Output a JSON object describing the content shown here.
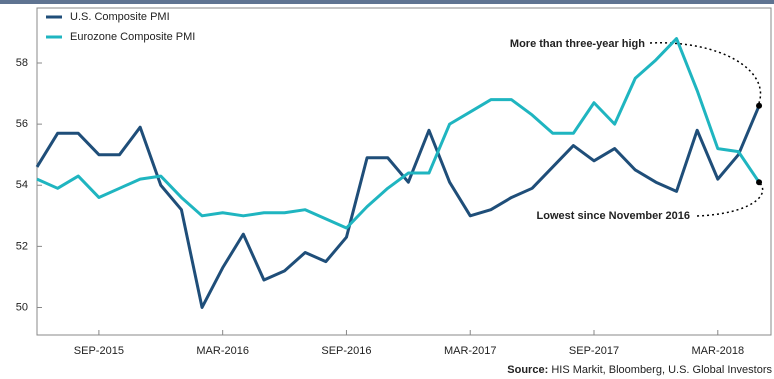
{
  "chart_data": {
    "type": "line",
    "categories": [
      null,
      null,
      null,
      "SEP-2015",
      null,
      null,
      null,
      null,
      null,
      "MAR-2016",
      null,
      null,
      null,
      null,
      null,
      "SEP-2016",
      null,
      null,
      null,
      null,
      null,
      "MAR-2017",
      null,
      null,
      null,
      null,
      null,
      "SEP-2017",
      null,
      null,
      null,
      null,
      null,
      "MAR-2018",
      null,
      null
    ],
    "series": [
      {
        "name": "U.S. Composite PMI",
        "color": "#1f4e79",
        "values": [
          54.6,
          55.7,
          55.7,
          55.0,
          55.0,
          55.9,
          54.0,
          53.2,
          50.0,
          51.3,
          52.4,
          50.9,
          51.2,
          51.8,
          51.5,
          52.3,
          54.9,
          54.9,
          54.1,
          55.8,
          54.1,
          53.0,
          53.2,
          53.6,
          53.9,
          54.6,
          55.3,
          54.8,
          55.2,
          54.5,
          54.1,
          53.8,
          55.8,
          54.2,
          55.0,
          56.6
        ]
      },
      {
        "name": "Eurozone Composite PMI",
        "color": "#1fb5c0",
        "values": [
          54.2,
          53.9,
          54.3,
          53.6,
          53.9,
          54.2,
          54.3,
          53.6,
          53.0,
          53.1,
          53.0,
          53.1,
          53.1,
          53.2,
          52.9,
          52.6,
          53.3,
          53.9,
          54.4,
          54.4,
          56.0,
          56.4,
          56.8,
          56.8,
          56.3,
          55.7,
          55.7,
          56.7,
          56.0,
          57.5,
          58.1,
          58.8,
          57.1,
          55.2,
          55.1,
          54.1
        ]
      }
    ],
    "ylim": [
      49.1,
      59.8
    ],
    "yticks": [
      50,
      52,
      54,
      56,
      58
    ],
    "grid": false,
    "legend": "top-left",
    "annotations": [
      "More than three-year high",
      "Lowest since November 2016"
    ],
    "source_label": "Source:",
    "source": "HIS Markit, Bloomberg, U.S. Global Investors"
  }
}
